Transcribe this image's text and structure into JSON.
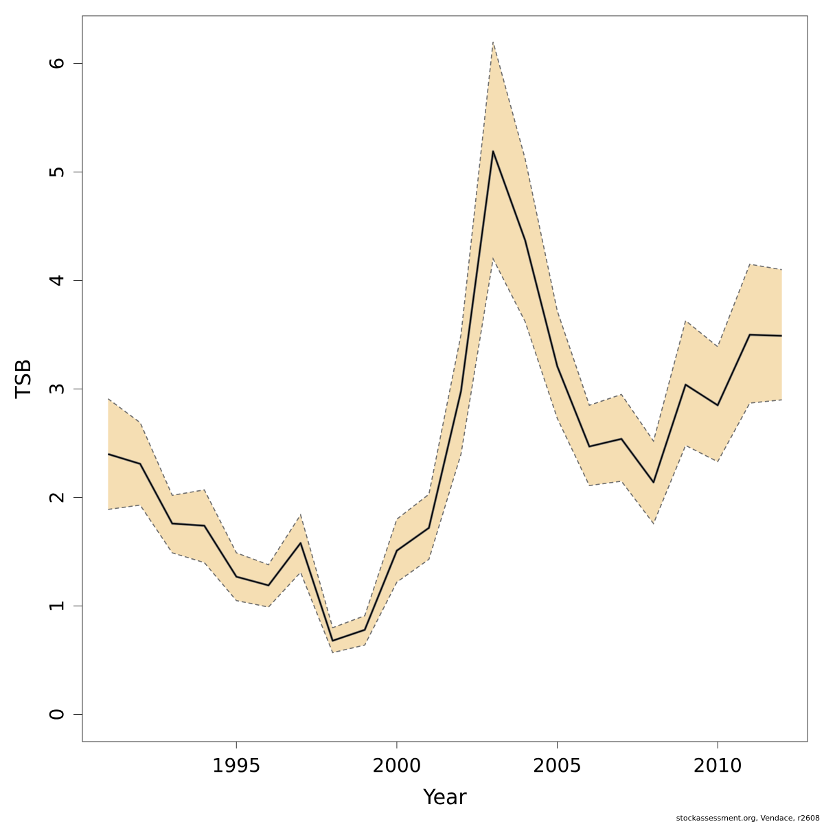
{
  "chart_data": {
    "type": "line",
    "title": "",
    "xlabel": "Year",
    "ylabel": "TSB",
    "xlim": [
      1990.2,
      2012.8
    ],
    "ylim": [
      -0.25,
      6.44
    ],
    "x_ticks": [
      1995,
      2000,
      2005,
      2010
    ],
    "y_ticks": [
      0,
      1,
      2,
      3,
      4,
      5,
      6
    ],
    "grid": false,
    "legend": "none",
    "x": [
      1991,
      1992,
      1993,
      1994,
      1995,
      1996,
      1997,
      1998,
      1999,
      2000,
      2001,
      2002,
      2003,
      2004,
      2005,
      2006,
      2007,
      2008,
      2009,
      2010,
      2011,
      2012
    ],
    "series": [
      {
        "role": "estimate",
        "values": [
          2.4,
          2.31,
          1.76,
          1.74,
          1.27,
          1.19,
          1.58,
          0.68,
          0.78,
          1.51,
          1.72,
          2.98,
          5.19,
          4.37,
          3.21,
          2.47,
          2.54,
          2.14,
          3.04,
          2.85,
          3.5,
          3.49
        ]
      },
      {
        "role": "upper",
        "values": [
          2.91,
          2.69,
          2.02,
          2.07,
          1.49,
          1.38,
          1.84,
          0.8,
          0.91,
          1.8,
          2.03,
          3.5,
          6.2,
          5.12,
          3.72,
          2.85,
          2.95,
          2.52,
          3.63,
          3.39,
          4.15,
          4.1
        ]
      },
      {
        "role": "lower",
        "values": [
          1.89,
          1.93,
          1.49,
          1.4,
          1.05,
          0.99,
          1.31,
          0.57,
          0.64,
          1.22,
          1.43,
          2.4,
          4.2,
          3.62,
          2.73,
          2.11,
          2.15,
          1.76,
          2.48,
          2.33,
          2.87,
          2.9
        ]
      }
    ],
    "colors": {
      "band_fill": "#F5DEB3",
      "bound_line": "#6e6e6e",
      "estimate_line": "#000000",
      "axis": "#333333"
    },
    "credit": "stockassessment.org, Vendace, r2608"
  }
}
